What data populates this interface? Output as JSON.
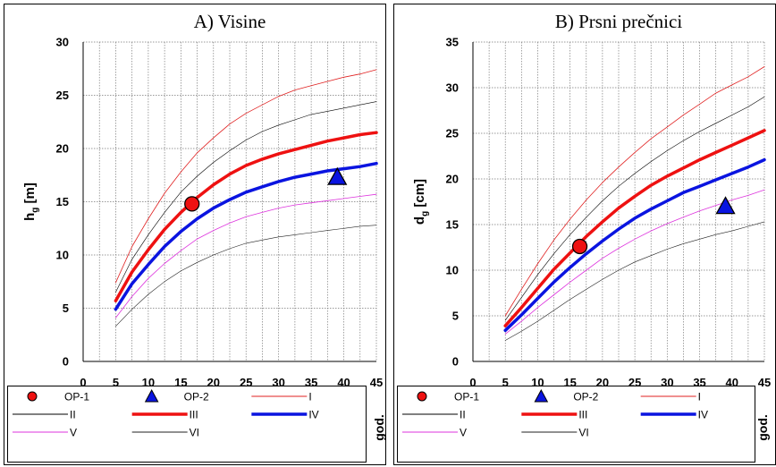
{
  "chart_data": [
    {
      "type": "line",
      "title": "A) Visine",
      "ylabel_main": "h",
      "ylabel_sub": "g",
      "ylabel_unit": "[m]",
      "xlabel": "god.",
      "xlim": [
        0,
        45
      ],
      "ylim": [
        0,
        30
      ],
      "xticks": [
        0,
        5,
        10,
        15,
        20,
        25,
        30,
        35,
        40,
        45
      ],
      "yticks": [
        0,
        5,
        10,
        15,
        20,
        25,
        30
      ],
      "x": [
        5,
        7.5,
        10,
        12.5,
        15,
        17.5,
        20,
        22.5,
        25,
        27.5,
        30,
        32.5,
        35,
        37.5,
        40,
        42.5,
        45
      ],
      "grid": true,
      "legend": "bottom",
      "series": [
        {
          "name": "I",
          "color": "#e02020",
          "width": 0.8,
          "values": [
            7.4,
            10.8,
            13.4,
            15.8,
            17.8,
            19.6,
            21.0,
            22.3,
            23.3,
            24.1,
            24.9,
            25.5,
            25.9,
            26.3,
            26.7,
            27.0,
            27.4
          ]
        },
        {
          "name": "II",
          "color": "#000000",
          "width": 0.6,
          "values": [
            6.5,
            9.6,
            11.9,
            14.0,
            15.9,
            17.4,
            18.7,
            19.8,
            20.8,
            21.6,
            22.2,
            22.7,
            23.2,
            23.5,
            23.8,
            24.1,
            24.4
          ]
        },
        {
          "name": "III",
          "color": "#ee1111",
          "width": 3.5,
          "values": [
            5.7,
            8.4,
            10.5,
            12.4,
            14.0,
            15.4,
            16.6,
            17.6,
            18.4,
            19.0,
            19.5,
            19.9,
            20.3,
            20.7,
            21.0,
            21.3,
            21.5
          ]
        },
        {
          "name": "IV",
          "color": "#0a14e0",
          "width": 3.5,
          "values": [
            4.9,
            7.3,
            9.1,
            10.8,
            12.2,
            13.4,
            14.4,
            15.2,
            15.9,
            16.4,
            16.9,
            17.3,
            17.6,
            17.9,
            18.1,
            18.3,
            18.6
          ]
        },
        {
          "name": "V",
          "color": "#dd33dd",
          "width": 0.8,
          "values": [
            4.1,
            6.1,
            7.8,
            9.2,
            10.4,
            11.5,
            12.3,
            13.0,
            13.6,
            14.0,
            14.4,
            14.7,
            14.9,
            15.1,
            15.3,
            15.5,
            15.7
          ]
        },
        {
          "name": "VI",
          "color": "#222222",
          "width": 0.6,
          "values": [
            3.3,
            4.9,
            6.3,
            7.5,
            8.5,
            9.3,
            10.0,
            10.6,
            11.1,
            11.4,
            11.7,
            11.9,
            12.1,
            12.3,
            12.5,
            12.7,
            12.8
          ]
        }
      ],
      "points": [
        {
          "name": "OP-1",
          "x": 16.7,
          "y": 14.8,
          "marker": "circle"
        },
        {
          "name": "OP-2",
          "x": 39.0,
          "y": 17.3,
          "marker": "triangle"
        }
      ]
    },
    {
      "type": "line",
      "title": "B) Prsni prečnici",
      "ylabel_main": "d",
      "ylabel_sub": "g",
      "ylabel_unit": "[cm]",
      "xlabel": "god.",
      "xlim": [
        0,
        45
      ],
      "ylim": [
        0,
        35
      ],
      "xticks": [
        0,
        5,
        10,
        15,
        20,
        25,
        30,
        35,
        40,
        45
      ],
      "yticks": [
        0,
        5,
        10,
        15,
        20,
        25,
        30,
        35
      ],
      "x": [
        5,
        7.5,
        10,
        12.5,
        15,
        17.5,
        20,
        22.5,
        25,
        27.5,
        30,
        32.5,
        35,
        37.5,
        40,
        42.5,
        45
      ],
      "grid": true,
      "legend": "bottom",
      "series": [
        {
          "name": "I",
          "color": "#e02020",
          "width": 0.8,
          "values": [
            5.0,
            7.9,
            10.7,
            13.3,
            15.6,
            17.7,
            19.6,
            21.3,
            22.9,
            24.4,
            25.7,
            27.0,
            28.2,
            29.4,
            30.3,
            31.2,
            32.3
          ]
        },
        {
          "name": "II",
          "color": "#000000",
          "width": 0.6,
          "values": [
            4.5,
            7.0,
            9.5,
            11.8,
            13.9,
            15.8,
            17.6,
            19.2,
            20.6,
            21.9,
            23.1,
            24.2,
            25.2,
            26.1,
            27.0,
            27.9,
            29.0
          ]
        },
        {
          "name": "III",
          "color": "#ee1111",
          "width": 3.5,
          "values": [
            3.9,
            5.9,
            8.0,
            10.1,
            11.9,
            13.7,
            15.3,
            16.8,
            18.1,
            19.3,
            20.3,
            21.2,
            22.1,
            22.9,
            23.7,
            24.5,
            25.3
          ]
        },
        {
          "name": "IV",
          "color": "#0a14e0",
          "width": 3.5,
          "values": [
            3.4,
            5.1,
            6.9,
            8.7,
            10.3,
            11.8,
            13.2,
            14.5,
            15.7,
            16.7,
            17.6,
            18.5,
            19.2,
            19.9,
            20.6,
            21.3,
            22.1
          ]
        },
        {
          "name": "V",
          "color": "#dd33dd",
          "width": 0.8,
          "values": [
            3.0,
            4.4,
            5.9,
            7.3,
            8.7,
            10.0,
            11.3,
            12.4,
            13.4,
            14.3,
            15.1,
            15.8,
            16.5,
            17.1,
            17.7,
            18.2,
            18.8
          ]
        },
        {
          "name": "VI",
          "color": "#222222",
          "width": 0.6,
          "values": [
            2.3,
            3.3,
            4.4,
            5.6,
            6.8,
            7.9,
            9.0,
            10.0,
            10.9,
            11.6,
            12.3,
            12.9,
            13.4,
            13.9,
            14.3,
            14.8,
            15.3
          ]
        }
      ],
      "points": [
        {
          "name": "OP-1",
          "x": 16.5,
          "y": 12.6,
          "marker": "circle"
        },
        {
          "name": "OP-2",
          "x": 39.0,
          "y": 17.0,
          "marker": "triangle"
        }
      ]
    }
  ]
}
